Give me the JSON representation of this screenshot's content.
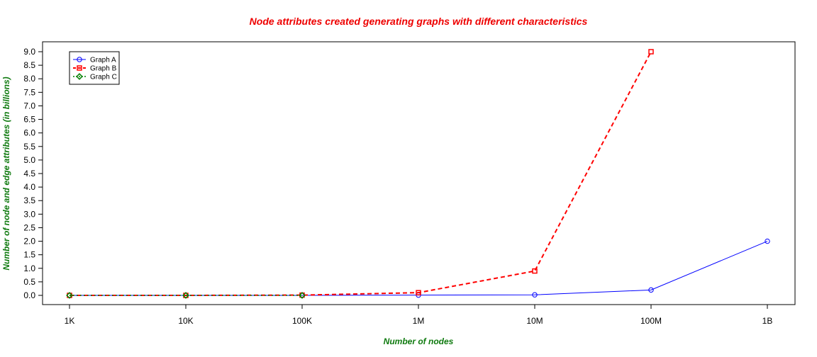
{
  "chart_data": {
    "type": "line",
    "title": "Node attributes created generating graphs with different characteristics",
    "xlabel": "Number of nodes",
    "ylabel": "Number of node and edge attributes (in billions)",
    "x_scale": "log",
    "categories": [
      "1K",
      "10K",
      "100K",
      "1M",
      "10M",
      "100M",
      "1B"
    ],
    "x": [
      1000,
      10000,
      100000,
      1000000,
      10000000,
      100000000,
      1000000000
    ],
    "ylim": [
      0,
      9
    ],
    "yticks": [
      "0.0",
      "0.5",
      "1.0",
      "1.5",
      "2.0",
      "2.5",
      "3.0",
      "3.5",
      "4.0",
      "4.5",
      "5.0",
      "5.5",
      "6.0",
      "6.5",
      "7.0",
      "7.5",
      "8.0",
      "8.5",
      "9.0"
    ],
    "grid": false,
    "legend_position": "top-left",
    "series": [
      {
        "name": "Graph A",
        "color": "#0000ff",
        "dash": "solid",
        "marker": "circle",
        "values": [
          0.0,
          0.0,
          0.0,
          0.01,
          0.02,
          0.2,
          2.0
        ]
      },
      {
        "name": "Graph B",
        "color": "#ff0000",
        "dash": "dashed",
        "marker": "square",
        "values": [
          0.0,
          0.0,
          0.01,
          0.1,
          0.9,
          9.0,
          null
        ]
      },
      {
        "name": "Graph C",
        "color": "#008000",
        "dash": "dotted",
        "marker": "diamond",
        "values": [
          0.0,
          0.0,
          0.0,
          null,
          null,
          null,
          null
        ]
      }
    ]
  }
}
